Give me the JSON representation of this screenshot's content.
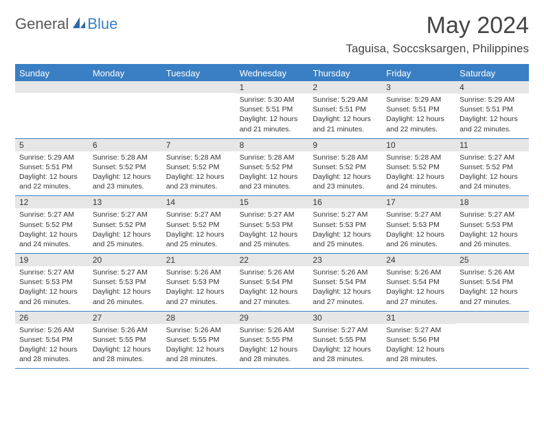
{
  "brand": {
    "text_general": "General",
    "text_blue": "Blue"
  },
  "header": {
    "month_title": "May 2024",
    "location": "Taguisa, Soccsksargen, Philippines"
  },
  "colors": {
    "accent": "#3a7fc4",
    "header_text": "#ffffff",
    "date_band_bg": "#e6e6e6",
    "body_text": "#333333",
    "background": "#ffffff"
  },
  "day_labels": [
    "Sunday",
    "Monday",
    "Tuesday",
    "Wednesday",
    "Thursday",
    "Friday",
    "Saturday"
  ],
  "weeks": [
    [
      {
        "date": "",
        "lines": []
      },
      {
        "date": "",
        "lines": []
      },
      {
        "date": "",
        "lines": []
      },
      {
        "date": "1",
        "lines": [
          "Sunrise: 5:30 AM",
          "Sunset: 5:51 PM",
          "Daylight: 12 hours",
          "and 21 minutes."
        ]
      },
      {
        "date": "2",
        "lines": [
          "Sunrise: 5:29 AM",
          "Sunset: 5:51 PM",
          "Daylight: 12 hours",
          "and 21 minutes."
        ]
      },
      {
        "date": "3",
        "lines": [
          "Sunrise: 5:29 AM",
          "Sunset: 5:51 PM",
          "Daylight: 12 hours",
          "and 22 minutes."
        ]
      },
      {
        "date": "4",
        "lines": [
          "Sunrise: 5:29 AM",
          "Sunset: 5:51 PM",
          "Daylight: 12 hours",
          "and 22 minutes."
        ]
      }
    ],
    [
      {
        "date": "5",
        "lines": [
          "Sunrise: 5:29 AM",
          "Sunset: 5:51 PM",
          "Daylight: 12 hours",
          "and 22 minutes."
        ]
      },
      {
        "date": "6",
        "lines": [
          "Sunrise: 5:28 AM",
          "Sunset: 5:52 PM",
          "Daylight: 12 hours",
          "and 23 minutes."
        ]
      },
      {
        "date": "7",
        "lines": [
          "Sunrise: 5:28 AM",
          "Sunset: 5:52 PM",
          "Daylight: 12 hours",
          "and 23 minutes."
        ]
      },
      {
        "date": "8",
        "lines": [
          "Sunrise: 5:28 AM",
          "Sunset: 5:52 PM",
          "Daylight: 12 hours",
          "and 23 minutes."
        ]
      },
      {
        "date": "9",
        "lines": [
          "Sunrise: 5:28 AM",
          "Sunset: 5:52 PM",
          "Daylight: 12 hours",
          "and 23 minutes."
        ]
      },
      {
        "date": "10",
        "lines": [
          "Sunrise: 5:28 AM",
          "Sunset: 5:52 PM",
          "Daylight: 12 hours",
          "and 24 minutes."
        ]
      },
      {
        "date": "11",
        "lines": [
          "Sunrise: 5:27 AM",
          "Sunset: 5:52 PM",
          "Daylight: 12 hours",
          "and 24 minutes."
        ]
      }
    ],
    [
      {
        "date": "12",
        "lines": [
          "Sunrise: 5:27 AM",
          "Sunset: 5:52 PM",
          "Daylight: 12 hours",
          "and 24 minutes."
        ]
      },
      {
        "date": "13",
        "lines": [
          "Sunrise: 5:27 AM",
          "Sunset: 5:52 PM",
          "Daylight: 12 hours",
          "and 25 minutes."
        ]
      },
      {
        "date": "14",
        "lines": [
          "Sunrise: 5:27 AM",
          "Sunset: 5:52 PM",
          "Daylight: 12 hours",
          "and 25 minutes."
        ]
      },
      {
        "date": "15",
        "lines": [
          "Sunrise: 5:27 AM",
          "Sunset: 5:53 PM",
          "Daylight: 12 hours",
          "and 25 minutes."
        ]
      },
      {
        "date": "16",
        "lines": [
          "Sunrise: 5:27 AM",
          "Sunset: 5:53 PM",
          "Daylight: 12 hours",
          "and 25 minutes."
        ]
      },
      {
        "date": "17",
        "lines": [
          "Sunrise: 5:27 AM",
          "Sunset: 5:53 PM",
          "Daylight: 12 hours",
          "and 26 minutes."
        ]
      },
      {
        "date": "18",
        "lines": [
          "Sunrise: 5:27 AM",
          "Sunset: 5:53 PM",
          "Daylight: 12 hours",
          "and 26 minutes."
        ]
      }
    ],
    [
      {
        "date": "19",
        "lines": [
          "Sunrise: 5:27 AM",
          "Sunset: 5:53 PM",
          "Daylight: 12 hours",
          "and 26 minutes."
        ]
      },
      {
        "date": "20",
        "lines": [
          "Sunrise: 5:27 AM",
          "Sunset: 5:53 PM",
          "Daylight: 12 hours",
          "and 26 minutes."
        ]
      },
      {
        "date": "21",
        "lines": [
          "Sunrise: 5:26 AM",
          "Sunset: 5:53 PM",
          "Daylight: 12 hours",
          "and 27 minutes."
        ]
      },
      {
        "date": "22",
        "lines": [
          "Sunrise: 5:26 AM",
          "Sunset: 5:54 PM",
          "Daylight: 12 hours",
          "and 27 minutes."
        ]
      },
      {
        "date": "23",
        "lines": [
          "Sunrise: 5:26 AM",
          "Sunset: 5:54 PM",
          "Daylight: 12 hours",
          "and 27 minutes."
        ]
      },
      {
        "date": "24",
        "lines": [
          "Sunrise: 5:26 AM",
          "Sunset: 5:54 PM",
          "Daylight: 12 hours",
          "and 27 minutes."
        ]
      },
      {
        "date": "25",
        "lines": [
          "Sunrise: 5:26 AM",
          "Sunset: 5:54 PM",
          "Daylight: 12 hours",
          "and 27 minutes."
        ]
      }
    ],
    [
      {
        "date": "26",
        "lines": [
          "Sunrise: 5:26 AM",
          "Sunset: 5:54 PM",
          "Daylight: 12 hours",
          "and 28 minutes."
        ]
      },
      {
        "date": "27",
        "lines": [
          "Sunrise: 5:26 AM",
          "Sunset: 5:55 PM",
          "Daylight: 12 hours",
          "and 28 minutes."
        ]
      },
      {
        "date": "28",
        "lines": [
          "Sunrise: 5:26 AM",
          "Sunset: 5:55 PM",
          "Daylight: 12 hours",
          "and 28 minutes."
        ]
      },
      {
        "date": "29",
        "lines": [
          "Sunrise: 5:26 AM",
          "Sunset: 5:55 PM",
          "Daylight: 12 hours",
          "and 28 minutes."
        ]
      },
      {
        "date": "30",
        "lines": [
          "Sunrise: 5:27 AM",
          "Sunset: 5:55 PM",
          "Daylight: 12 hours",
          "and 28 minutes."
        ]
      },
      {
        "date": "31",
        "lines": [
          "Sunrise: 5:27 AM",
          "Sunset: 5:56 PM",
          "Daylight: 12 hours",
          "and 28 minutes."
        ]
      },
      {
        "date": "",
        "lines": []
      }
    ]
  ]
}
